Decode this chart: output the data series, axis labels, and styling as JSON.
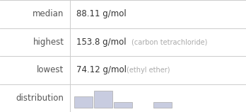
{
  "rows": [
    {
      "label": "median",
      "value": "88.11 g/mol",
      "note": ""
    },
    {
      "label": "highest",
      "value": "153.8 g/mol",
      "note": "(carbon tetrachloride)"
    },
    {
      "label": "lowest",
      "value": "74.12 g/mol",
      "note": "(ethyl ether)"
    },
    {
      "label": "distribution",
      "value": "",
      "note": ""
    }
  ],
  "label_color": "#555555",
  "value_color": "#333333",
  "note_color": "#aaaaaa",
  "label_fontsize": 8.5,
  "value_fontsize": 8.5,
  "note_fontsize": 7.0,
  "grid_color": "#cccccc",
  "background": "#ffffff",
  "hist_bar_color": "#c8cce0",
  "hist_bar_edge": "#aaaaaa",
  "hist_bins": [
    2,
    3,
    1,
    0,
    1
  ],
  "col_split": 0.285
}
